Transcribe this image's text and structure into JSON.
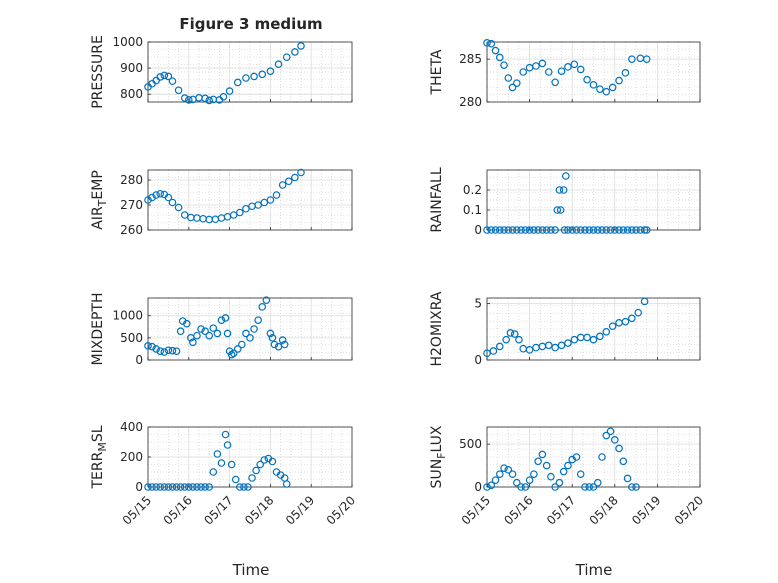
{
  "figure": {
    "title": "Figure 3 medium",
    "marker_color": "#0072BD"
  },
  "chart_data": [
    {
      "type": "scatter",
      "ylabel": "PRESSURE",
      "ylim": [
        770,
        1000
      ],
      "yticks": [
        800,
        900,
        1000
      ],
      "xlim": [
        "05/15",
        "05/20"
      ],
      "xticks": [
        "05/15",
        "05/16",
        "05/17",
        "05/18",
        "05/19",
        "05/20"
      ],
      "grid": true,
      "points": [
        [
          0,
          828
        ],
        [
          0.1,
          840
        ],
        [
          0.2,
          852
        ],
        [
          0.3,
          866
        ],
        [
          0.4,
          872
        ],
        [
          0.5,
          868
        ],
        [
          0.6,
          850
        ],
        [
          0.75,
          815
        ],
        [
          0.9,
          785
        ],
        [
          1.0,
          778
        ],
        [
          1.1,
          780
        ],
        [
          1.25,
          786
        ],
        [
          1.4,
          784
        ],
        [
          1.5,
          776
        ],
        [
          1.6,
          780
        ],
        [
          1.75,
          778
        ],
        [
          1.85,
          790
        ],
        [
          2.0,
          812
        ],
        [
          2.2,
          845
        ],
        [
          2.4,
          862
        ],
        [
          2.6,
          868
        ],
        [
          2.8,
          876
        ],
        [
          3.0,
          888
        ],
        [
          3.2,
          915
        ],
        [
          3.4,
          942
        ],
        [
          3.6,
          962
        ],
        [
          3.75,
          985
        ]
      ]
    },
    {
      "type": "scatter",
      "ylabel": "THETA",
      "ylim": [
        280,
        287
      ],
      "yticks": [
        280,
        285
      ],
      "xlim": [
        "05/15",
        "05/20"
      ],
      "xticks": [
        "05/15",
        "05/16",
        "05/17",
        "05/18",
        "05/19",
        "05/20"
      ],
      "grid": true,
      "points": [
        [
          0,
          286.9
        ],
        [
          0.1,
          286.8
        ],
        [
          0.2,
          286.0
        ],
        [
          0.3,
          285.2
        ],
        [
          0.4,
          284.3
        ],
        [
          0.5,
          282.8
        ],
        [
          0.6,
          281.7
        ],
        [
          0.7,
          282.2
        ],
        [
          0.85,
          283.5
        ],
        [
          1.0,
          284.0
        ],
        [
          1.15,
          284.2
        ],
        [
          1.3,
          284.5
        ],
        [
          1.45,
          283.5
        ],
        [
          1.6,
          282.3
        ],
        [
          1.75,
          283.6
        ],
        [
          1.9,
          284.1
        ],
        [
          2.05,
          284.4
        ],
        [
          2.2,
          283.8
        ],
        [
          2.35,
          282.6
        ],
        [
          2.5,
          282.0
        ],
        [
          2.65,
          281.5
        ],
        [
          2.8,
          281.2
        ],
        [
          2.95,
          281.7
        ],
        [
          3.1,
          282.5
        ],
        [
          3.25,
          283.4
        ],
        [
          3.4,
          285.0
        ],
        [
          3.6,
          285.1
        ],
        [
          3.75,
          285.0
        ]
      ]
    },
    {
      "type": "scatter",
      "ylabel": "AIR_TEMP",
      "ylim": [
        260,
        284
      ],
      "yticks": [
        260,
        270,
        280
      ],
      "xlim": [
        "05/15",
        "05/20"
      ],
      "xticks": [
        "05/15",
        "05/16",
        "05/17",
        "05/18",
        "05/19",
        "05/20"
      ],
      "grid": true,
      "points": [
        [
          0,
          272
        ],
        [
          0.1,
          273
        ],
        [
          0.2,
          274
        ],
        [
          0.3,
          274.5
        ],
        [
          0.4,
          274.2
        ],
        [
          0.5,
          273
        ],
        [
          0.6,
          271
        ],
        [
          0.75,
          269
        ],
        [
          0.9,
          266
        ],
        [
          1.05,
          265
        ],
        [
          1.2,
          264.8
        ],
        [
          1.35,
          264.5
        ],
        [
          1.5,
          264.2
        ],
        [
          1.65,
          264.3
        ],
        [
          1.8,
          264.8
        ],
        [
          1.95,
          265.3
        ],
        [
          2.1,
          266
        ],
        [
          2.25,
          267
        ],
        [
          2.4,
          268.5
        ],
        [
          2.55,
          269.5
        ],
        [
          2.7,
          270
        ],
        [
          2.85,
          271
        ],
        [
          3.0,
          272
        ],
        [
          3.15,
          274
        ],
        [
          3.3,
          278
        ],
        [
          3.45,
          279.5
        ],
        [
          3.6,
          281
        ],
        [
          3.75,
          283
        ]
      ]
    },
    {
      "type": "scatter",
      "ylabel": "RAINFALL",
      "ylim": [
        0,
        0.3
      ],
      "yticks": [
        0,
        0.1,
        0.2
      ],
      "xlim": [
        "05/15",
        "05/20"
      ],
      "xticks": [
        "05/15",
        "05/16",
        "05/17",
        "05/18",
        "05/19",
        "05/20"
      ],
      "grid": true,
      "points": [
        [
          0,
          0
        ],
        [
          0.1,
          0
        ],
        [
          0.2,
          0
        ],
        [
          0.3,
          0
        ],
        [
          0.4,
          0
        ],
        [
          0.5,
          0
        ],
        [
          0.6,
          0
        ],
        [
          0.7,
          0
        ],
        [
          0.8,
          0
        ],
        [
          0.9,
          0
        ],
        [
          1.0,
          0
        ],
        [
          1.1,
          0
        ],
        [
          1.2,
          0
        ],
        [
          1.3,
          0
        ],
        [
          1.4,
          0
        ],
        [
          1.5,
          0
        ],
        [
          1.6,
          0
        ],
        [
          1.65,
          0.1
        ],
        [
          1.7,
          0.2
        ],
        [
          1.73,
          0.1
        ],
        [
          1.8,
          0.2
        ],
        [
          1.82,
          0
        ],
        [
          1.85,
          0.27
        ],
        [
          1.9,
          0
        ],
        [
          2.0,
          0
        ],
        [
          2.1,
          0
        ],
        [
          2.2,
          0
        ],
        [
          2.3,
          0
        ],
        [
          2.4,
          0
        ],
        [
          2.5,
          0
        ],
        [
          2.6,
          0
        ],
        [
          2.7,
          0
        ],
        [
          2.8,
          0
        ],
        [
          2.9,
          0
        ],
        [
          3.0,
          0
        ],
        [
          3.1,
          0
        ],
        [
          3.2,
          0
        ],
        [
          3.3,
          0
        ],
        [
          3.4,
          0
        ],
        [
          3.5,
          0
        ],
        [
          3.6,
          0
        ],
        [
          3.7,
          0
        ],
        [
          3.75,
          0
        ]
      ]
    },
    {
      "type": "scatter",
      "ylabel": "MIXDEPTH",
      "ylim": [
        0,
        1400
      ],
      "yticks": [
        0,
        500,
        1000
      ],
      "xlim": [
        "05/15",
        "05/20"
      ],
      "xticks": [
        "05/15",
        "05/16",
        "05/17",
        "05/18",
        "05/19",
        "05/20"
      ],
      "grid": true,
      "points": [
        [
          0,
          320
        ],
        [
          0.1,
          300
        ],
        [
          0.2,
          250
        ],
        [
          0.3,
          200
        ],
        [
          0.4,
          180
        ],
        [
          0.5,
          220
        ],
        [
          0.6,
          210
        ],
        [
          0.7,
          200
        ],
        [
          0.8,
          650
        ],
        [
          0.85,
          880
        ],
        [
          0.95,
          820
        ],
        [
          1.05,
          500
        ],
        [
          1.1,
          400
        ],
        [
          1.2,
          550
        ],
        [
          1.3,
          700
        ],
        [
          1.4,
          650
        ],
        [
          1.5,
          550
        ],
        [
          1.6,
          720
        ],
        [
          1.7,
          600
        ],
        [
          1.8,
          900
        ],
        [
          1.9,
          950
        ],
        [
          1.95,
          600
        ],
        [
          2.0,
          200
        ],
        [
          2.05,
          120
        ],
        [
          2.1,
          150
        ],
        [
          2.2,
          250
        ],
        [
          2.3,
          350
        ],
        [
          2.4,
          600
        ],
        [
          2.5,
          500
        ],
        [
          2.6,
          700
        ],
        [
          2.7,
          900
        ],
        [
          2.8,
          1200
        ],
        [
          2.9,
          1350
        ],
        [
          3.0,
          600
        ],
        [
          3.05,
          500
        ],
        [
          3.1,
          350
        ],
        [
          3.2,
          300
        ],
        [
          3.3,
          450
        ],
        [
          3.35,
          350
        ]
      ]
    },
    {
      "type": "scatter",
      "ylabel": "H2OMIXRA",
      "ylim": [
        0,
        5.5
      ],
      "yticks": [
        0,
        5
      ],
      "xlim": [
        "05/15",
        "05/20"
      ],
      "xticks": [
        "05/15",
        "05/16",
        "05/17",
        "05/18",
        "05/19",
        "05/20"
      ],
      "grid": true,
      "points": [
        [
          0,
          0.6
        ],
        [
          0.15,
          0.8
        ],
        [
          0.3,
          1.2
        ],
        [
          0.45,
          1.8
        ],
        [
          0.55,
          2.4
        ],
        [
          0.65,
          2.3
        ],
        [
          0.75,
          1.8
        ],
        [
          0.85,
          1.0
        ],
        [
          1.0,
          0.9
        ],
        [
          1.15,
          1.1
        ],
        [
          1.3,
          1.2
        ],
        [
          1.45,
          1.3
        ],
        [
          1.6,
          1.1
        ],
        [
          1.75,
          1.3
        ],
        [
          1.9,
          1.5
        ],
        [
          2.05,
          1.8
        ],
        [
          2.2,
          2.0
        ],
        [
          2.35,
          2.0
        ],
        [
          2.5,
          1.8
        ],
        [
          2.65,
          2.1
        ],
        [
          2.8,
          2.5
        ],
        [
          2.95,
          3.0
        ],
        [
          3.1,
          3.3
        ],
        [
          3.25,
          3.4
        ],
        [
          3.4,
          3.7
        ],
        [
          3.55,
          4.2
        ],
        [
          3.7,
          5.2
        ]
      ]
    },
    {
      "type": "scatter",
      "ylabel": "TERR_MSL",
      "ylim": [
        0,
        400
      ],
      "yticks": [
        0,
        200,
        400
      ],
      "xlim": [
        "05/15",
        "05/20"
      ],
      "xticks": [
        "05/15",
        "05/16",
        "05/17",
        "05/18",
        "05/19",
        "05/20"
      ],
      "grid": true,
      "points": [
        [
          0,
          0
        ],
        [
          0.1,
          0
        ],
        [
          0.2,
          0
        ],
        [
          0.3,
          0
        ],
        [
          0.4,
          0
        ],
        [
          0.5,
          0
        ],
        [
          0.6,
          0
        ],
        [
          0.7,
          0
        ],
        [
          0.8,
          0
        ],
        [
          0.9,
          0
        ],
        [
          1.0,
          0
        ],
        [
          1.1,
          0
        ],
        [
          1.2,
          0
        ],
        [
          1.3,
          0
        ],
        [
          1.4,
          0
        ],
        [
          1.5,
          0
        ],
        [
          1.6,
          100
        ],
        [
          1.7,
          220
        ],
        [
          1.8,
          160
        ],
        [
          1.9,
          350
        ],
        [
          1.95,
          280
        ],
        [
          2.05,
          150
        ],
        [
          2.15,
          50
        ],
        [
          2.25,
          0
        ],
        [
          2.35,
          0
        ],
        [
          2.45,
          0
        ],
        [
          2.55,
          60
        ],
        [
          2.65,
          110
        ],
        [
          2.75,
          150
        ],
        [
          2.85,
          180
        ],
        [
          2.95,
          190
        ],
        [
          3.05,
          170
        ],
        [
          3.15,
          100
        ],
        [
          3.25,
          80
        ],
        [
          3.35,
          60
        ],
        [
          3.4,
          20
        ]
      ]
    },
    {
      "type": "scatter",
      "ylabel": "SUN_FLUX",
      "ylim": [
        0,
        700
      ],
      "yticks": [
        0,
        500
      ],
      "xlim": [
        "05/15",
        "05/20"
      ],
      "xticks": [
        "05/15",
        "05/16",
        "05/17",
        "05/18",
        "05/19",
        "05/20"
      ],
      "grid": true,
      "points": [
        [
          0,
          0
        ],
        [
          0.1,
          20
        ],
        [
          0.2,
          80
        ],
        [
          0.3,
          150
        ],
        [
          0.4,
          220
        ],
        [
          0.5,
          200
        ],
        [
          0.6,
          150
        ],
        [
          0.7,
          50
        ],
        [
          0.8,
          0
        ],
        [
          0.9,
          0
        ],
        [
          1.0,
          80
        ],
        [
          1.1,
          150
        ],
        [
          1.2,
          300
        ],
        [
          1.3,
          380
        ],
        [
          1.4,
          250
        ],
        [
          1.5,
          120
        ],
        [
          1.6,
          0
        ],
        [
          1.7,
          50
        ],
        [
          1.8,
          180
        ],
        [
          1.9,
          250
        ],
        [
          2.0,
          320
        ],
        [
          2.1,
          350
        ],
        [
          2.2,
          150
        ],
        [
          2.3,
          0
        ],
        [
          2.4,
          0
        ],
        [
          2.5,
          0
        ],
        [
          2.6,
          50
        ],
        [
          2.7,
          350
        ],
        [
          2.8,
          600
        ],
        [
          2.9,
          650
        ],
        [
          3.0,
          550
        ],
        [
          3.1,
          450
        ],
        [
          3.2,
          300
        ],
        [
          3.3,
          100
        ],
        [
          3.4,
          0
        ],
        [
          3.5,
          0
        ]
      ]
    }
  ],
  "xlabel": "Time"
}
